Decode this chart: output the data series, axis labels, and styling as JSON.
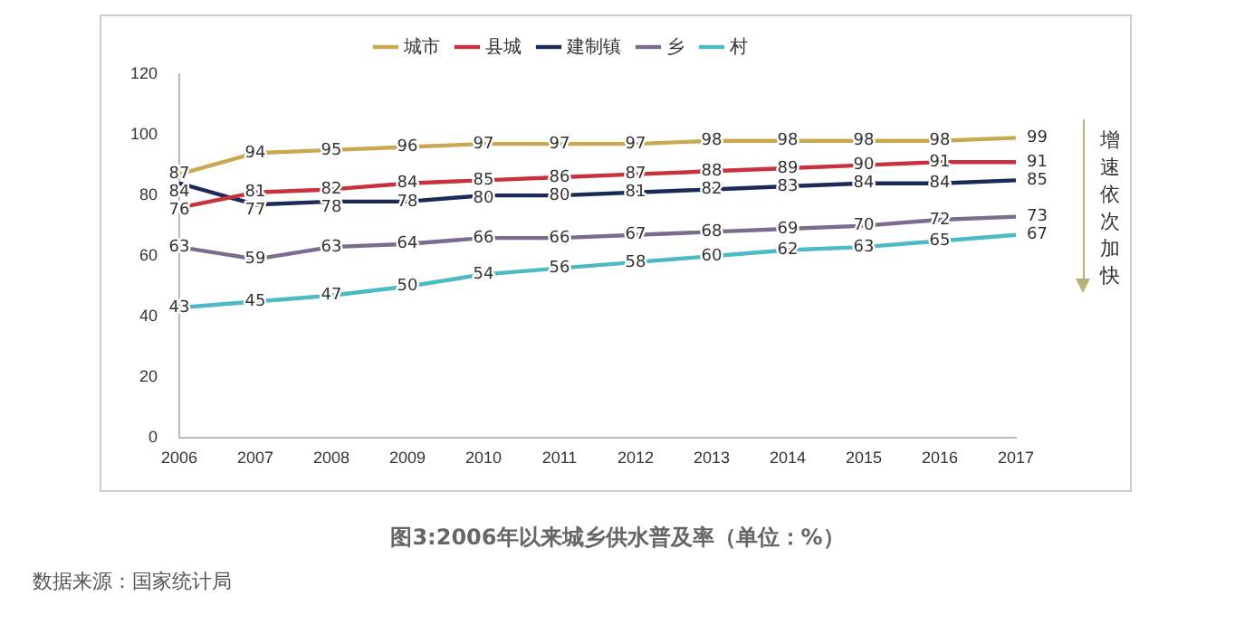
{
  "chart_data": {
    "type": "line",
    "title": "图3:2006年以来城乡供水普及率（单位：%）",
    "categories": [
      "2006",
      "2007",
      "2008",
      "2009",
      "2010",
      "2011",
      "2012",
      "2013",
      "2014",
      "2015",
      "2016",
      "2017"
    ],
    "series": [
      {
        "name": "城市",
        "color": "#c9a84f",
        "values": [
          87,
          94,
          95,
          96,
          97,
          97,
          97,
          98,
          98,
          98,
          98,
          99
        ]
      },
      {
        "name": "县城",
        "color": "#c8323c",
        "values": [
          76,
          81,
          82,
          84,
          85,
          86,
          87,
          88,
          89,
          90,
          91,
          91
        ]
      },
      {
        "name": "建制镇",
        "color": "#1c2a5a",
        "values": [
          84,
          77,
          78,
          78,
          80,
          80,
          81,
          82,
          83,
          84,
          84,
          85
        ]
      },
      {
        "name": "乡",
        "color": "#7b6b8e",
        "values": [
          63,
          59,
          63,
          64,
          66,
          66,
          67,
          68,
          69,
          70,
          72,
          73
        ]
      },
      {
        "name": "村",
        "color": "#4cb9c6",
        "values": [
          43,
          45,
          47,
          50,
          54,
          56,
          58,
          60,
          62,
          63,
          65,
          67
        ]
      }
    ],
    "ylim": [
      0,
      120
    ],
    "yticks": [
      0,
      20,
      40,
      60,
      80,
      100,
      120
    ],
    "grid": false,
    "legend": "top",
    "marker": "none",
    "line_style": "solid",
    "data_labels": true,
    "annotations": [
      "增速依次加快",
      "数据来源：国家统计局"
    ]
  }
}
